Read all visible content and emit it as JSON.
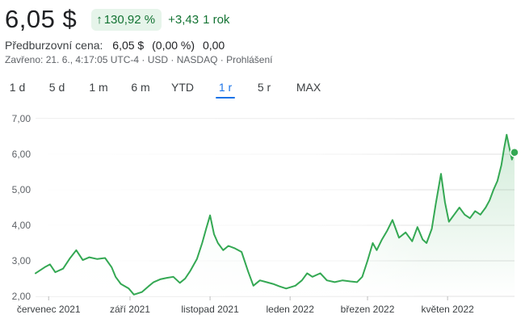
{
  "quote": {
    "price": "6,05 $",
    "change_pct": "130,92 %",
    "change_arrow": "↑",
    "change_abs": "+3,43",
    "change_period": "1 rok"
  },
  "premarket": {
    "label": "Předburzovní cena:",
    "price": "6,05 $",
    "change_pct": "(0,00 %)",
    "change_abs": "0,00"
  },
  "meta": "Zavřeno: 21. 6., 4:17:05 UTC-4 · USD · NASDAQ · Prohlášení",
  "tabs": [
    {
      "label": "1 d"
    },
    {
      "label": "5 d"
    },
    {
      "label": "1 m"
    },
    {
      "label": "6 m"
    },
    {
      "label": "YTD"
    },
    {
      "label": "1 r",
      "active": true
    },
    {
      "label": "5 r"
    },
    {
      "label": "MAX"
    }
  ],
  "colors": {
    "line": "#34a853",
    "accent": "#1a73e8",
    "positive": "#137333"
  },
  "chart_data": {
    "type": "area",
    "y_ticks": [
      "7,00",
      "6,00",
      "5,00",
      "4,00",
      "3,00",
      "2,00"
    ],
    "ylim": [
      2,
      7
    ],
    "x_tick_labels": [
      "červenec 2021",
      "září 2021",
      "listopad 2021",
      "leden 2022",
      "březen 2022",
      "květen 2022"
    ],
    "x_tick_dates": [
      "2021-07-01",
      "2021-09-01",
      "2021-11-01",
      "2022-01-01",
      "2022-03-01",
      "2022-05-01"
    ],
    "x_range": [
      "2021-06-21",
      "2022-06-21"
    ],
    "grid": true,
    "series": [
      {
        "points": [
          [
            "2021-06-21",
            2.65
          ],
          [
            "2021-06-28",
            2.82
          ],
          [
            "2021-07-02",
            2.9
          ],
          [
            "2021-07-06",
            2.68
          ],
          [
            "2021-07-12",
            2.78
          ],
          [
            "2021-07-17",
            3.06
          ],
          [
            "2021-07-22",
            3.3
          ],
          [
            "2021-07-27",
            3.02
          ],
          [
            "2021-08-01",
            3.1
          ],
          [
            "2021-08-07",
            3.05
          ],
          [
            "2021-08-13",
            3.08
          ],
          [
            "2021-08-18",
            2.82
          ],
          [
            "2021-08-21",
            2.55
          ],
          [
            "2021-08-25",
            2.35
          ],
          [
            "2021-08-31",
            2.22
          ],
          [
            "2021-09-04",
            2.05
          ],
          [
            "2021-09-10",
            2.12
          ],
          [
            "2021-09-15",
            2.28
          ],
          [
            "2021-09-19",
            2.4
          ],
          [
            "2021-09-24",
            2.48
          ],
          [
            "2021-09-29",
            2.52
          ],
          [
            "2021-10-04",
            2.55
          ],
          [
            "2021-10-09",
            2.38
          ],
          [
            "2021-10-13",
            2.5
          ],
          [
            "2021-10-17",
            2.72
          ],
          [
            "2021-10-22",
            3.05
          ],
          [
            "2021-10-26",
            3.5
          ],
          [
            "2021-10-29",
            3.9
          ],
          [
            "2021-11-01",
            4.28
          ],
          [
            "2021-11-04",
            3.75
          ],
          [
            "2021-11-07",
            3.5
          ],
          [
            "2021-11-11",
            3.3
          ],
          [
            "2021-11-15",
            3.42
          ],
          [
            "2021-11-20",
            3.35
          ],
          [
            "2021-11-25",
            3.25
          ],
          [
            "2021-11-30",
            2.7
          ],
          [
            "2021-12-04",
            2.3
          ],
          [
            "2021-12-09",
            2.45
          ],
          [
            "2021-12-14",
            2.4
          ],
          [
            "2021-12-19",
            2.35
          ],
          [
            "2021-12-24",
            2.28
          ],
          [
            "2021-12-29",
            2.22
          ],
          [
            "2022-01-05",
            2.3
          ],
          [
            "2022-01-10",
            2.45
          ],
          [
            "2022-01-14",
            2.65
          ],
          [
            "2022-01-18",
            2.55
          ],
          [
            "2022-01-24",
            2.65
          ],
          [
            "2022-01-29",
            2.45
          ],
          [
            "2022-02-04",
            2.4
          ],
          [
            "2022-02-10",
            2.45
          ],
          [
            "2022-02-16",
            2.42
          ],
          [
            "2022-02-21",
            2.4
          ],
          [
            "2022-02-25",
            2.55
          ],
          [
            "2022-03-01",
            3.0
          ],
          [
            "2022-03-05",
            3.5
          ],
          [
            "2022-03-08",
            3.3
          ],
          [
            "2022-03-12",
            3.6
          ],
          [
            "2022-03-16",
            3.85
          ],
          [
            "2022-03-20",
            4.15
          ],
          [
            "2022-03-25",
            3.65
          ],
          [
            "2022-03-30",
            3.8
          ],
          [
            "2022-04-04",
            3.55
          ],
          [
            "2022-04-08",
            3.95
          ],
          [
            "2022-04-12",
            3.6
          ],
          [
            "2022-04-15",
            3.5
          ],
          [
            "2022-04-19",
            3.9
          ],
          [
            "2022-04-22",
            4.6
          ],
          [
            "2022-04-26",
            5.45
          ],
          [
            "2022-04-29",
            4.65
          ],
          [
            "2022-05-02",
            4.1
          ],
          [
            "2022-05-06",
            4.3
          ],
          [
            "2022-05-10",
            4.5
          ],
          [
            "2022-05-14",
            4.3
          ],
          [
            "2022-05-18",
            4.2
          ],
          [
            "2022-05-22",
            4.4
          ],
          [
            "2022-05-26",
            4.3
          ],
          [
            "2022-05-30",
            4.5
          ],
          [
            "2022-06-02",
            4.7
          ],
          [
            "2022-06-05",
            5.0
          ],
          [
            "2022-06-08",
            5.25
          ],
          [
            "2022-06-11",
            5.7
          ],
          [
            "2022-06-13",
            6.15
          ],
          [
            "2022-06-15",
            6.55
          ],
          [
            "2022-06-17",
            6.2
          ],
          [
            "2022-06-19",
            5.85
          ],
          [
            "2022-06-21",
            6.05
          ]
        ]
      }
    ]
  }
}
